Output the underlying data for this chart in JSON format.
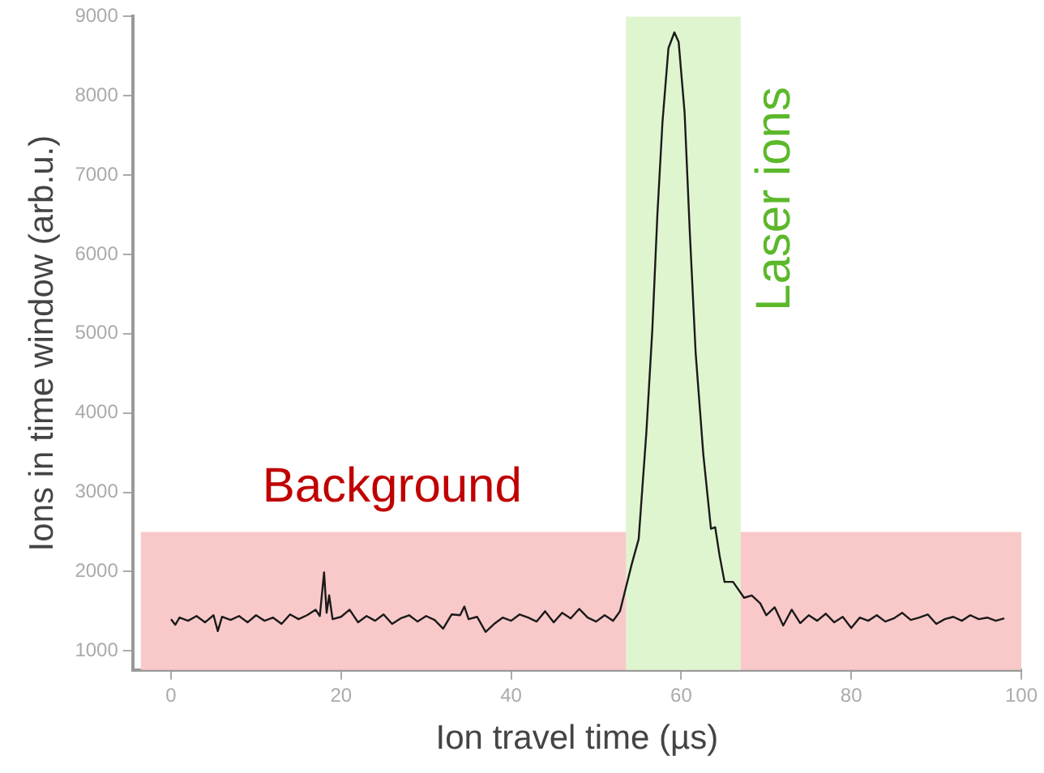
{
  "chart_data": {
    "type": "line",
    "xlabel": "Ion travel time (µs)",
    "ylabel": "Ions in time window (arb.u.)",
    "xlim": [
      -4.5,
      100
    ],
    "xticks": [
      0,
      20,
      40,
      60,
      80,
      100
    ],
    "ylim": [
      760,
      9000
    ],
    "yticks": [
      1000,
      2000,
      3000,
      4000,
      5000,
      6000,
      7000,
      8000,
      9000
    ],
    "grid": false,
    "legend": false,
    "marker": "none",
    "line_style": "solid",
    "bands": [
      {
        "axis": "y",
        "from": 760,
        "to": 2500,
        "label": "Background",
        "color": "#f9c9c9"
      },
      {
        "axis": "x",
        "from": 53.5,
        "to": 67,
        "label": "Laser ions",
        "color": "#dff5d0"
      }
    ],
    "series": [
      {
        "color": "#1a1a1a",
        "x": [
          0,
          0.5,
          1,
          2,
          3,
          4,
          5,
          5.5,
          6,
          7,
          8,
          9,
          10,
          11,
          12,
          13,
          14,
          15,
          16,
          17,
          17.5,
          18,
          18.3,
          18.6,
          19,
          20,
          21,
          22,
          23,
          24,
          25,
          26,
          27,
          28,
          29,
          30,
          31,
          32,
          33,
          34,
          34.5,
          35,
          36,
          37,
          38,
          39,
          40,
          41,
          42,
          43,
          44,
          45,
          46,
          47,
          48,
          49,
          50,
          51,
          52,
          52.8,
          53.5,
          54.2,
          55,
          55.9,
          56.6,
          57.2,
          57.8,
          58.5,
          59.2,
          59.7,
          60.4,
          61,
          61.7,
          62.6,
          63.5,
          64,
          64.5,
          65.1,
          66.1,
          67.4,
          68.3,
          69.3,
          70,
          71,
          72,
          73,
          74,
          75,
          76,
          77,
          78,
          79,
          80,
          81,
          82,
          83,
          84,
          85,
          86,
          87,
          88,
          89,
          90,
          91,
          92,
          93,
          94,
          95,
          96,
          97,
          98
        ],
        "values": [
          1400,
          1330,
          1420,
          1380,
          1440,
          1360,
          1450,
          1250,
          1430,
          1390,
          1440,
          1360,
          1450,
          1380,
          1420,
          1340,
          1460,
          1400,
          1450,
          1520,
          1440,
          1990,
          1480,
          1700,
          1400,
          1430,
          1520,
          1360,
          1440,
          1380,
          1460,
          1340,
          1410,
          1450,
          1370,
          1440,
          1390,
          1280,
          1460,
          1450,
          1560,
          1400,
          1430,
          1240,
          1340,
          1420,
          1380,
          1460,
          1420,
          1370,
          1500,
          1360,
          1480,
          1410,
          1530,
          1420,
          1370,
          1450,
          1380,
          1500,
          1800,
          2100,
          2410,
          3750,
          5040,
          6500,
          7670,
          8600,
          8800,
          8680,
          7790,
          6310,
          4760,
          3480,
          2540,
          2560,
          2210,
          1870,
          1870,
          1670,
          1700,
          1600,
          1450,
          1550,
          1320,
          1520,
          1350,
          1450,
          1380,
          1470,
          1360,
          1430,
          1290,
          1420,
          1380,
          1450,
          1370,
          1410,
          1480,
          1390,
          1420,
          1460,
          1340,
          1400,
          1430,
          1380,
          1450,
          1400,
          1420,
          1380,
          1410
        ]
      }
    ]
  }
}
